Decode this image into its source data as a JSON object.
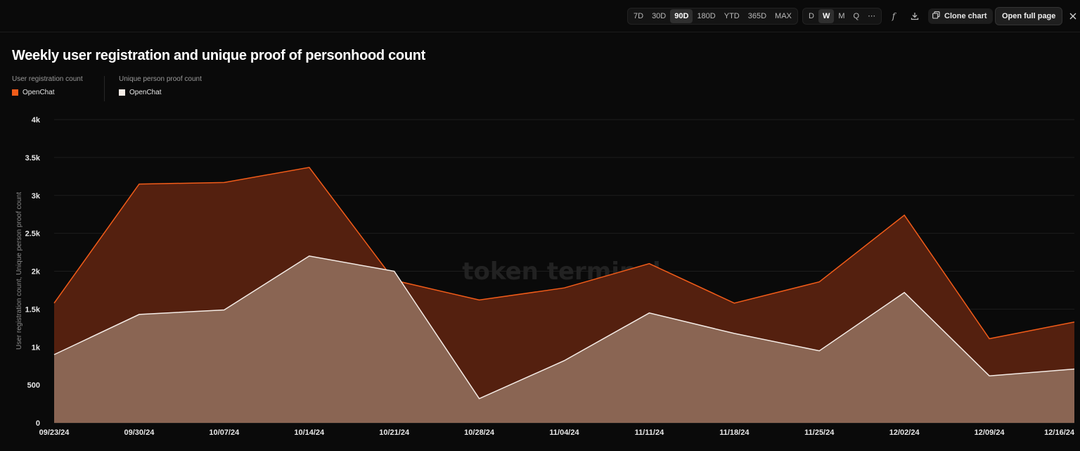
{
  "toolbar": {
    "ranges": [
      "7D",
      "30D",
      "90D",
      "180D",
      "YTD",
      "365D",
      "MAX"
    ],
    "active_range": "90D",
    "granularity": [
      "D",
      "W",
      "M",
      "Q",
      "⋯"
    ],
    "active_granularity": "W",
    "formula_icon": "formula-icon",
    "download_icon": "download-icon",
    "clone_label": "Clone chart",
    "clone_icon": "copy-icon",
    "open_label": "Open full page",
    "close_icon": "close-icon"
  },
  "legend": {
    "group1_title": "User registration count",
    "group1_item": "OpenChat",
    "group2_title": "Unique person proof count",
    "group2_item": "OpenChat"
  },
  "colors": {
    "registration_line": "#f25c19",
    "registration_fill": "#54200f",
    "proof_line": "#f5ece6",
    "proof_fill": "#8a6553",
    "background": "#0a0a0a"
  },
  "watermark": "token terminal_",
  "chart_data": {
    "type": "area",
    "title": "Weekly user registration and unique proof of personhood count",
    "ylabel": "User registration count, Unique person proof count",
    "xlabel": "",
    "ylim": [
      0,
      4000
    ],
    "yticks": [
      0,
      500,
      1000,
      1500,
      2000,
      2500,
      3000,
      3500,
      4000
    ],
    "ytick_labels": [
      "0",
      "500",
      "1k",
      "1.5k",
      "2k",
      "2.5k",
      "3k",
      "3.5k",
      "4k"
    ],
    "x": [
      "09/23/24",
      "09/30/24",
      "10/07/24",
      "10/14/24",
      "10/21/24",
      "10/28/24",
      "11/04/24",
      "11/11/24",
      "11/18/24",
      "11/25/24",
      "12/02/24",
      "12/09/24",
      "12/16/24"
    ],
    "grid": true,
    "legend_position": "top-left",
    "series": [
      {
        "name": "OpenChat",
        "group": "User registration count",
        "values": [
          1580,
          3150,
          3170,
          3370,
          1880,
          1620,
          1780,
          2100,
          1580,
          1860,
          2740,
          1110,
          1330
        ]
      },
      {
        "name": "OpenChat",
        "group": "Unique person proof count",
        "values": [
          900,
          1430,
          1490,
          2200,
          2000,
          320,
          820,
          1450,
          1180,
          950,
          1720,
          620,
          710
        ]
      }
    ]
  }
}
